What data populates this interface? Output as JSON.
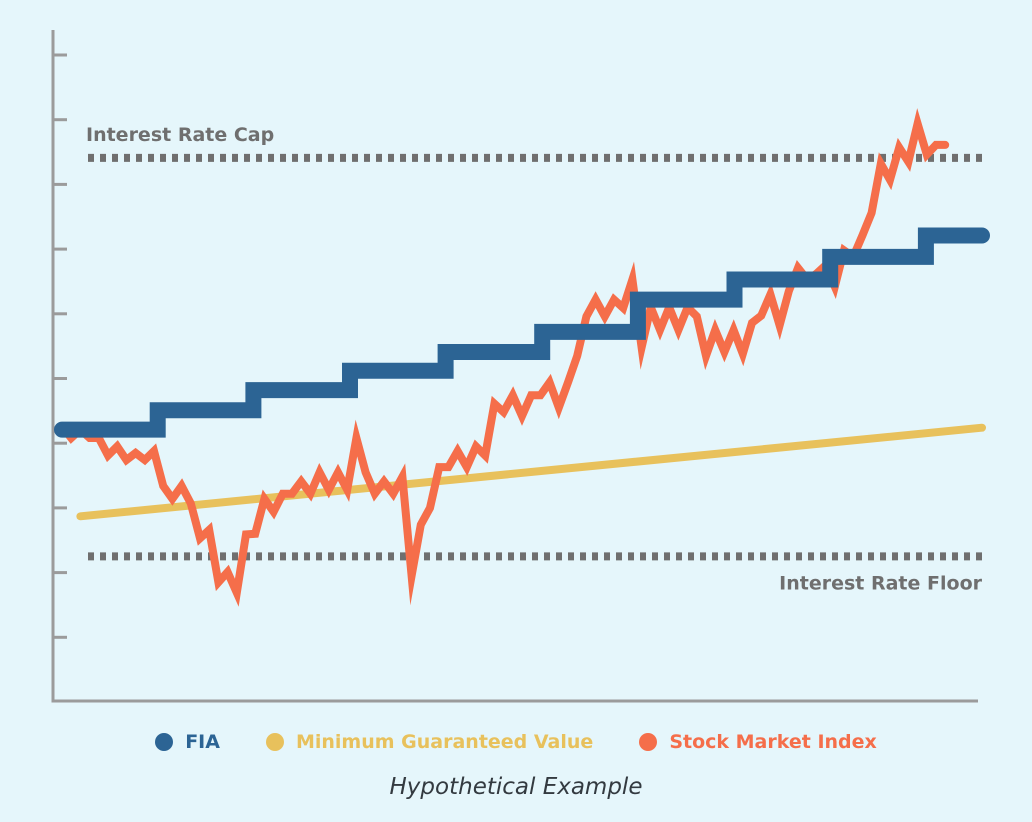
{
  "chart_data": {
    "type": "line",
    "title": "",
    "xlabel": "",
    "ylabel": "",
    "grid": false,
    "xlim": [
      0,
      100
    ],
    "ylim": [
      0,
      100
    ],
    "y_ticks": [
      0,
      10,
      20,
      30,
      40,
      50,
      60,
      70,
      80,
      90,
      100
    ],
    "reference_lines": [
      {
        "name": "Interest Rate Cap",
        "value": 84.1,
        "style": "dotted",
        "color": "#6f6f6f",
        "label_position": "top-left"
      },
      {
        "name": "Interest Rate Floor",
        "value": 22.5,
        "style": "dotted",
        "color": "#6f6f6f",
        "label_position": "bottom-right"
      }
    ],
    "series": [
      {
        "name": "FIA",
        "color": "#2c6494",
        "step": true,
        "points": [
          [
            0,
            42.1
          ],
          [
            10.4,
            42.1
          ],
          [
            10.4,
            45.1
          ],
          [
            20.8,
            45.1
          ],
          [
            20.8,
            48.2
          ],
          [
            31.3,
            48.2
          ],
          [
            31.3,
            51.2
          ],
          [
            41.7,
            51.2
          ],
          [
            41.7,
            54.1
          ],
          [
            52.2,
            54.1
          ],
          [
            52.2,
            57.2
          ],
          [
            62.6,
            57.2
          ],
          [
            62.6,
            62.2
          ],
          [
            73.1,
            62.2
          ],
          [
            73.1,
            65.3
          ],
          [
            83.5,
            65.3
          ],
          [
            83.5,
            68.8
          ],
          [
            93.9,
            68.8
          ],
          [
            93.9,
            72.1
          ],
          [
            100,
            72.1
          ]
        ]
      },
      {
        "name": "Minimum Guaranteed Value",
        "color": "#e8c15c",
        "step": false,
        "points": [
          [
            2,
            28.7
          ],
          [
            100,
            42.4
          ]
        ]
      },
      {
        "name": "Stock Market Index",
        "color": "#f56e4a",
        "step": false,
        "points": [
          [
            0,
            42.6
          ],
          [
            1,
            40.8
          ],
          [
            2,
            42.1
          ],
          [
            3,
            40.8
          ],
          [
            4,
            40.8
          ],
          [
            5,
            38.1
          ],
          [
            6,
            39.5
          ],
          [
            7,
            37.4
          ],
          [
            8,
            38.5
          ],
          [
            9,
            37.4
          ],
          [
            10,
            38.8
          ],
          [
            11,
            33.4
          ],
          [
            12,
            31.4
          ],
          [
            13,
            33.4
          ],
          [
            14,
            30.7
          ],
          [
            15,
            25.3
          ],
          [
            16,
            26.6
          ],
          [
            17,
            18.5
          ],
          [
            18,
            20.1
          ],
          [
            19,
            16.9
          ],
          [
            20,
            25.9
          ],
          [
            21,
            26.0
          ],
          [
            22,
            31.4
          ],
          [
            23,
            29.4
          ],
          [
            24,
            32.2
          ],
          [
            25,
            32.2
          ],
          [
            26,
            34.1
          ],
          [
            27,
            32.2
          ],
          [
            28,
            35.5
          ],
          [
            29,
            32.8
          ],
          [
            30,
            35.5
          ],
          [
            31,
            32.8
          ],
          [
            32,
            40.8
          ],
          [
            33,
            35.5
          ],
          [
            34,
            32.2
          ],
          [
            35,
            34.1
          ],
          [
            36,
            32.2
          ],
          [
            37,
            34.8
          ],
          [
            38,
            19.5
          ],
          [
            39,
            27.4
          ],
          [
            40,
            30.0
          ],
          [
            41,
            36.3
          ],
          [
            42,
            36.3
          ],
          [
            43,
            38.8
          ],
          [
            44,
            36.3
          ],
          [
            45,
            39.5
          ],
          [
            46,
            38.1
          ],
          [
            47,
            46.1
          ],
          [
            48,
            44.8
          ],
          [
            49,
            47.4
          ],
          [
            50,
            44.2
          ],
          [
            51,
            47.4
          ],
          [
            52,
            47.4
          ],
          [
            53,
            49.4
          ],
          [
            54,
            45.5
          ],
          [
            55,
            49.4
          ],
          [
            56,
            53.5
          ],
          [
            57,
            59.6
          ],
          [
            58,
            62.2
          ],
          [
            59,
            59.6
          ],
          [
            60,
            62.2
          ],
          [
            61,
            60.9
          ],
          [
            62,
            65.3
          ],
          [
            63,
            54.8
          ],
          [
            64,
            61.0
          ],
          [
            65,
            57.5
          ],
          [
            66,
            61.0
          ],
          [
            67,
            57.5
          ],
          [
            68,
            61.0
          ],
          [
            69,
            59.6
          ],
          [
            70,
            53.5
          ],
          [
            71,
            57.5
          ],
          [
            72,
            54.1
          ],
          [
            73,
            57.5
          ],
          [
            74,
            53.8
          ],
          [
            75,
            58.6
          ],
          [
            76,
            59.7
          ],
          [
            77,
            63.0
          ],
          [
            78,
            58.2
          ],
          [
            79,
            63.5
          ],
          [
            80,
            67.1
          ],
          [
            81,
            65.3
          ],
          [
            82,
            66.2
          ],
          [
            83,
            67.5
          ],
          [
            84,
            64.2
          ],
          [
            85,
            69.8
          ],
          [
            86,
            68.8
          ],
          [
            87,
            72.1
          ],
          [
            88,
            75.6
          ],
          [
            89,
            83.2
          ],
          [
            90,
            80.7
          ],
          [
            91,
            85.7
          ],
          [
            92,
            83.5
          ],
          [
            93,
            89.4
          ],
          [
            94,
            84.6
          ],
          [
            95,
            86.1
          ],
          [
            96,
            86.1
          ]
        ]
      }
    ]
  },
  "legend": {
    "fia": "FIA",
    "minimum": "Minimum Guaranteed Value",
    "stock": "Stock Market Index"
  },
  "caption": "Hypothetical Example",
  "colors": {
    "background": "#e5f6fb",
    "axis": "#9b9b9b",
    "fia": "#2c6494",
    "minimum": "#e8c15c",
    "stock": "#f56e4a",
    "reference": "#6f6f6f"
  }
}
